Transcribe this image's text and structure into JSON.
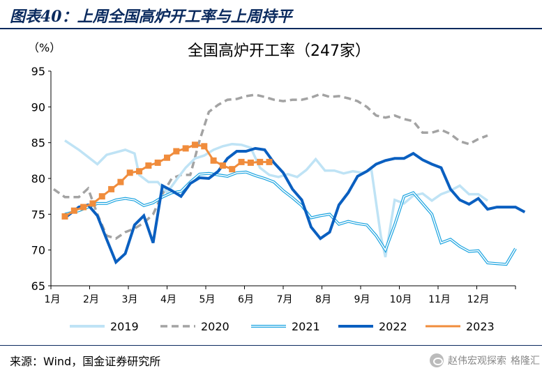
{
  "figure_title": "图表40：上周全国高炉开工率与上周持平",
  "source": "来源：Wind，国金证券研究所",
  "watermark": "赵伟宏观探索",
  "watermark2": "格隆汇",
  "chart_data": {
    "type": "line",
    "title": "全国高炉开工率（247家）",
    "ylabel": "（%）",
    "ylim": [
      65,
      95
    ],
    "yticks": [
      65,
      70,
      75,
      80,
      85,
      90,
      95
    ],
    "xlim": [
      0,
      50
    ],
    "x_month_labels": [
      "1月",
      "2月",
      "3月",
      "4月",
      "5月",
      "6月",
      "7月",
      "8月",
      "9月",
      "10月",
      "11月",
      "12月"
    ],
    "grid": false,
    "legend": "bottom",
    "series": [
      {
        "name": "2019",
        "color": "#bfe3f5",
        "style": "solid",
        "values": [
          [
            1.5,
            85.3
          ],
          [
            3,
            84
          ],
          [
            5,
            82
          ],
          [
            6,
            83.3
          ],
          [
            8,
            84
          ],
          [
            9,
            83.5
          ],
          [
            9.5,
            80.5
          ],
          [
            10.5,
            79.5
          ],
          [
            11.5,
            79.5
          ],
          [
            12.5,
            78
          ],
          [
            13.5,
            79.8
          ],
          [
            14.5,
            81.5
          ],
          [
            15.5,
            82.8
          ],
          [
            16.5,
            83.2
          ],
          [
            17.5,
            84
          ],
          [
            18.5,
            84.5
          ],
          [
            19.5,
            84.8
          ],
          [
            20.5,
            84.7
          ],
          [
            21.5,
            84.3
          ],
          [
            22.5,
            81.5
          ],
          [
            23.5,
            80.5
          ],
          [
            24.5,
            80.2
          ],
          [
            25.5,
            80.6
          ],
          [
            26.5,
            80.2
          ],
          [
            27.5,
            81.2
          ],
          [
            28.5,
            82.7
          ],
          [
            29.5,
            81.1
          ],
          [
            30.5,
            81.1
          ],
          [
            31.5,
            80.7
          ],
          [
            32.5,
            81
          ],
          [
            33.5,
            80.8
          ],
          [
            34.5,
            81.2
          ],
          [
            35.5,
            72
          ],
          [
            36,
            69
          ],
          [
            37,
            77
          ],
          [
            38,
            76.5
          ],
          [
            39,
            77.6
          ],
          [
            40,
            77.9
          ],
          [
            41,
            76.9
          ],
          [
            42,
            77.8
          ],
          [
            43,
            78.3
          ],
          [
            44,
            79
          ],
          [
            45,
            77.8
          ],
          [
            46,
            77.8
          ],
          [
            47,
            76.9
          ]
        ]
      },
      {
        "name": "2020",
        "color": "#a3a3a3",
        "style": "dashed",
        "values": [
          [
            0.3,
            78.5
          ],
          [
            1.5,
            77.4
          ],
          [
            3,
            77.4
          ],
          [
            4,
            78.6
          ],
          [
            5,
            75
          ],
          [
            6,
            72
          ],
          [
            7,
            71.6
          ],
          [
            8,
            72.5
          ],
          [
            9,
            73
          ],
          [
            10,
            73.8
          ],
          [
            11,
            75
          ],
          [
            12,
            77.8
          ],
          [
            13,
            80
          ],
          [
            14,
            80.5
          ],
          [
            15,
            80.5
          ],
          [
            16,
            85.3
          ],
          [
            17,
            89.3
          ],
          [
            18,
            90.3
          ],
          [
            19,
            91
          ],
          [
            20,
            91.1
          ],
          [
            21,
            91.5
          ],
          [
            22,
            91.7
          ],
          [
            23,
            91.4
          ],
          [
            24,
            91
          ],
          [
            25,
            90.8
          ],
          [
            26,
            91
          ],
          [
            27,
            91
          ],
          [
            28,
            91.3
          ],
          [
            29,
            91.8
          ],
          [
            30,
            91.4
          ],
          [
            31,
            91.5
          ],
          [
            32,
            91.2
          ],
          [
            33,
            90.8
          ],
          [
            34,
            90
          ],
          [
            35,
            88.8
          ],
          [
            36,
            88.5
          ],
          [
            37,
            88.8
          ],
          [
            38,
            88.3
          ],
          [
            39,
            88
          ],
          [
            40,
            86.4
          ],
          [
            41,
            86.4
          ],
          [
            42,
            86.8
          ],
          [
            43,
            86.2
          ],
          [
            44,
            85.2
          ],
          [
            45,
            84.8
          ],
          [
            46,
            85.5
          ],
          [
            47,
            86
          ]
        ]
      },
      {
        "name": "2021",
        "color": "#1aa3e0",
        "style": "double",
        "values": [
          [
            1.5,
            75
          ],
          [
            3,
            75.5
          ],
          [
            4,
            76
          ],
          [
            5,
            76.5
          ],
          [
            6,
            76.5
          ],
          [
            7,
            77
          ],
          [
            8,
            77.2
          ],
          [
            9,
            77
          ],
          [
            10,
            76.2
          ],
          [
            11,
            76.6
          ],
          [
            12,
            77.4
          ],
          [
            13,
            78
          ],
          [
            14,
            78.2
          ],
          [
            15,
            79.5
          ],
          [
            16,
            80.6
          ],
          [
            17,
            80.7
          ],
          [
            18,
            80.5
          ],
          [
            19,
            80.3
          ],
          [
            20,
            80.8
          ],
          [
            21,
            80.9
          ],
          [
            22,
            80.4
          ],
          [
            23,
            80
          ],
          [
            24,
            79.5
          ],
          [
            25,
            78.3
          ],
          [
            26,
            77.3
          ],
          [
            27,
            76.2
          ],
          [
            28,
            74.5
          ],
          [
            29,
            74.8
          ],
          [
            30,
            75
          ],
          [
            31,
            73.6
          ],
          [
            32,
            74
          ],
          [
            33,
            73.7
          ],
          [
            34,
            73.5
          ],
          [
            35,
            72
          ],
          [
            36,
            70
          ],
          [
            37,
            73.5
          ],
          [
            38,
            77.5
          ],
          [
            39,
            78
          ],
          [
            40,
            76.5
          ],
          [
            41,
            75
          ],
          [
            42,
            71
          ],
          [
            43,
            71.5
          ],
          [
            44,
            70.5
          ],
          [
            45,
            69.8
          ],
          [
            46,
            69.9
          ],
          [
            47,
            68.2
          ],
          [
            48,
            68.1
          ],
          [
            49,
            68
          ],
          [
            50,
            70.2
          ]
        ]
      },
      {
        "name": "2022",
        "color": "#0a5fc0",
        "style": "solid-thick",
        "values": [
          [
            1.5,
            74.5
          ],
          [
            3,
            76
          ],
          [
            4,
            76.3
          ],
          [
            5,
            74.8
          ],
          [
            6,
            71.5
          ],
          [
            7,
            68.3
          ],
          [
            8,
            69.5
          ],
          [
            9,
            73.5
          ],
          [
            10,
            74.8
          ],
          [
            11,
            71
          ],
          [
            12,
            79
          ],
          [
            13,
            78.3
          ],
          [
            14,
            77.5
          ],
          [
            15,
            79.3
          ],
          [
            16,
            80.1
          ],
          [
            17,
            80
          ],
          [
            18,
            81
          ],
          [
            19,
            82.8
          ],
          [
            20,
            83.8
          ],
          [
            21,
            83.8
          ],
          [
            22,
            84.2
          ],
          [
            23,
            84
          ],
          [
            24,
            82.2
          ],
          [
            25,
            80.8
          ],
          [
            26,
            78.5
          ],
          [
            27,
            77
          ],
          [
            28,
            73.2
          ],
          [
            29,
            71.6
          ],
          [
            30,
            72.5
          ],
          [
            31,
            76.3
          ],
          [
            32,
            78
          ],
          [
            33,
            80.3
          ],
          [
            34,
            81
          ],
          [
            35,
            82
          ],
          [
            36,
            82.5
          ],
          [
            37,
            82.8
          ],
          [
            38,
            82.8
          ],
          [
            39,
            83.5
          ],
          [
            40,
            82.6
          ],
          [
            41,
            82
          ],
          [
            42,
            81.5
          ],
          [
            43,
            78.5
          ],
          [
            44,
            77
          ],
          [
            45,
            76.4
          ],
          [
            46,
            77.2
          ],
          [
            47,
            75.7
          ],
          [
            48,
            76
          ],
          [
            49,
            76
          ],
          [
            50,
            76
          ],
          [
            51,
            75.3
          ]
        ]
      },
      {
        "name": "2023",
        "color": "#f08c3c",
        "style": "squares",
        "values": [
          [
            1.5,
            74.7
          ],
          [
            2.5,
            75.5
          ],
          [
            3.5,
            76
          ],
          [
            4.5,
            76.5
          ],
          [
            5.5,
            77.5
          ],
          [
            6.5,
            78.5
          ],
          [
            7.5,
            79.5
          ],
          [
            8.5,
            80.8
          ],
          [
            9.5,
            81
          ],
          [
            10.5,
            81.8
          ],
          [
            11.5,
            82.2
          ],
          [
            12.5,
            82.9
          ],
          [
            13.5,
            83.8
          ],
          [
            14.5,
            84.2
          ],
          [
            15.5,
            84.7
          ],
          [
            16.5,
            84.5
          ],
          [
            17.5,
            82.5
          ],
          [
            18.5,
            81.8
          ],
          [
            19.5,
            81.3
          ],
          [
            20.5,
            82.3
          ],
          [
            21.5,
            82.2
          ],
          [
            22.5,
            82.3
          ],
          [
            23.5,
            82.3
          ]
        ]
      }
    ]
  }
}
